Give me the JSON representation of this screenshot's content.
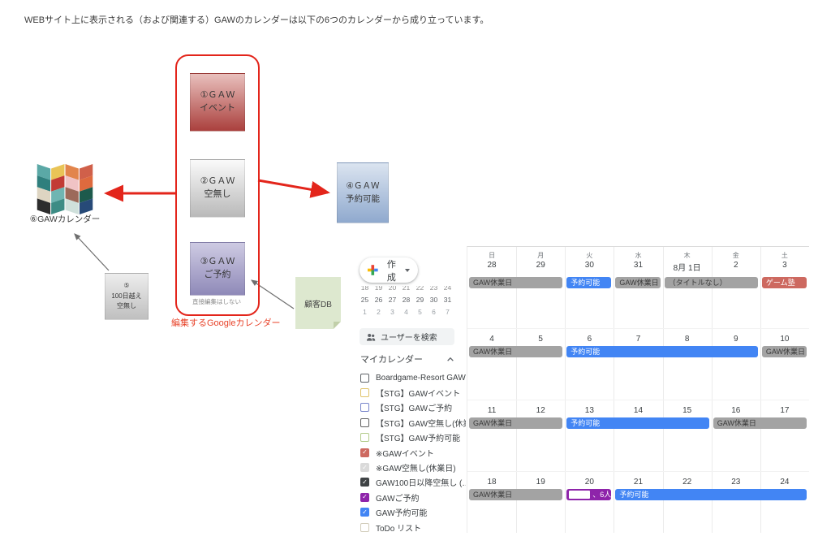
{
  "intro": "WEBサイト上に表示される（および関連する）GAWのカレンダーは以下の6つのカレンダーから成り立っています。",
  "diagram": {
    "logo_label": "⑥GAWカレンダー",
    "logo_tiles": [
      "#5ba8a6",
      "#e9c457",
      "#e2854c",
      "#d0604a",
      "#2f7f7d",
      "#c23b35",
      "#f0c3c5",
      "#de6a3e",
      "#ded5c2",
      "#6fb5b2",
      "#9c6a5a",
      "#1d5a4c",
      "#2d2d2d",
      "#3d8c85",
      "#cfe0db",
      "#274a78"
    ],
    "box1": [
      "①ＧＡＷ",
      "イベント"
    ],
    "box2": [
      "②ＧＡＷ",
      "空無し"
    ],
    "box3": [
      "③ＧＡＷ",
      "ご予約"
    ],
    "no_direct_edit": "直接編集はしない",
    "edit_group_label": "編集するGoogleカレンダー",
    "box4": [
      "④ＧＡＷ",
      "予約可能"
    ],
    "box5": [
      "⑤",
      "100日越え",
      "空無し"
    ],
    "customer_db": "顧客DB"
  },
  "calendar": {
    "create_button": "作成",
    "mini_rows": [
      [
        "18",
        "19",
        "20",
        "21",
        "22",
        "23",
        "24"
      ],
      [
        "25",
        "26",
        "27",
        "28",
        "29",
        "30",
        "31"
      ],
      [
        "1",
        "2",
        "3",
        "4",
        "5",
        "6",
        "7"
      ]
    ],
    "search_users": "ユーザーを検索",
    "my_calendars_label": "マイカレンダー",
    "my_calendars": [
      {
        "label": "Boardgame-Resort GAW",
        "checked": false,
        "color": "#5f6368",
        "faded": false
      },
      {
        "label": "【STG】GAWイベント",
        "checked": false,
        "color": "#e0c36a",
        "faded": false
      },
      {
        "label": "【STG】GAWご予約",
        "checked": false,
        "color": "#7986cb",
        "faded": false
      },
      {
        "label": "【STG】GAW空無し(休業…",
        "checked": false,
        "color": "#616161",
        "faded": false
      },
      {
        "label": "【STG】GAW予約可能",
        "checked": false,
        "color": "#b3cc8b",
        "faded": false
      },
      {
        "label": "※GAWイベント",
        "checked": true,
        "color": "#cd6960",
        "faded": false
      },
      {
        "label": "※GAW空無し(休業日)",
        "checked": true,
        "color": "#bdbdbd",
        "faded": true
      },
      {
        "label": "GAW100日以降空無し (…",
        "checked": true,
        "color": "#3f4345",
        "faded": false
      },
      {
        "label": "GAWご予約",
        "checked": true,
        "color": "#8e24aa",
        "faded": false
      },
      {
        "label": "GAW予約可能",
        "checked": true,
        "color": "#4285f4",
        "faded": false
      },
      {
        "label": "ToDo リスト",
        "checked": false,
        "color": "#d2cdbb",
        "faded": false
      }
    ],
    "day_names": [
      "日",
      "月",
      "火",
      "水",
      "木",
      "金",
      "土"
    ],
    "weeks": [
      {
        "dates": [
          "28",
          "29",
          "30",
          "31",
          "8月 1日",
          "2",
          "3"
        ],
        "events": [
          {
            "col": 0,
            "span": 2,
            "label": "GAW休業日",
            "type": "gray"
          },
          {
            "col": 2,
            "span": 1,
            "label": "予約可能",
            "type": "blue"
          },
          {
            "col": 3,
            "span": 1,
            "label": "GAW休業日",
            "type": "gray"
          },
          {
            "col": 4,
            "span": 2,
            "label": "（タイトルなし）",
            "type": "gray"
          },
          {
            "col": 6,
            "span": 1,
            "label": "ゲーム塾",
            "type": "red"
          }
        ]
      },
      {
        "dates": [
          "4",
          "5",
          "6",
          "7",
          "8",
          "9",
          "10"
        ],
        "events": [
          {
            "col": 0,
            "span": 2,
            "label": "GAW休業日",
            "type": "gray"
          },
          {
            "col": 2,
            "span": 4,
            "label": "予約可能",
            "type": "blue"
          },
          {
            "col": 6,
            "span": 1,
            "label": "GAW休業日",
            "type": "gray"
          }
        ]
      },
      {
        "dates": [
          "11",
          "12",
          "13",
          "14",
          "15",
          "16",
          "17"
        ],
        "events": [
          {
            "col": 0,
            "span": 2,
            "label": "GAW休業日",
            "type": "gray"
          },
          {
            "col": 2,
            "span": 3,
            "label": "予約可能",
            "type": "blue"
          },
          {
            "col": 5,
            "span": 2,
            "label": "GAW休業日",
            "type": "gray"
          }
        ]
      },
      {
        "dates": [
          "18",
          "19",
          "20",
          "21",
          "22",
          "23",
          "24"
        ],
        "events": [
          {
            "col": 0,
            "span": 2,
            "label": "GAW休業日",
            "type": "gray"
          },
          {
            "col": 2,
            "span": 1,
            "label": "、6人、",
            "type": "purple",
            "redacted": true
          },
          {
            "col": 3,
            "span": 4,
            "label": "予約可能",
            "type": "blue"
          }
        ]
      }
    ],
    "colors": {
      "closed_gray": "#a3a3a3",
      "available_blue": "#4285f4",
      "event_red": "#cd6960",
      "reservation_purple": "#8e24aa"
    }
  }
}
